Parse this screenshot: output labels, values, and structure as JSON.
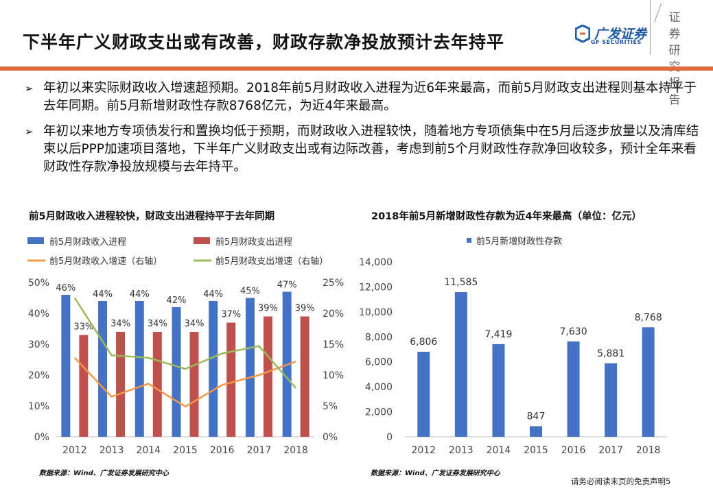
{
  "header": {
    "title": "下半年广义财政支出或有改善，财政存款净投放预计去年持平",
    "logo_text": "广发证券",
    "logo_en": "GF SECURITIES",
    "report_tag": "证券研究报告"
  },
  "bullets": [
    {
      "marker": "➢",
      "text": "年初以来实际财政收入增速超预期。2018年前5月财政收入进程为近6年来最高，而前5月财政支出进程则基本持平于去年同期。前5月新增财政性存款8768亿元，为近4年来最高。"
    },
    {
      "marker": "➢",
      "text": "年初以来地方专项债发行和置换均低于预期，而财政收入进程较快，随着地方专项债集中在5月后逐步放量以及清库结束以后PPP加速项目落地，下半年广义财政支出或有边际改善，考虑到前5个月财政性存款净回收较多，预计全年来看财政性存款净投放规模与去年持平。"
    }
  ],
  "colors": {
    "accent_rule": "#e06a3c",
    "brand_blue": "#1f5aa8",
    "bar_blue": "#4472c4",
    "bar_red": "#c0504d",
    "line_orange": "#f79646",
    "line_green": "#9bbb59"
  },
  "chart_data": [
    {
      "type": "bar",
      "title": "前5月财政收入进程较快，财政支出进程持平于去年同期",
      "categories": [
        "2012",
        "2013",
        "2014",
        "2015",
        "2016",
        "2017",
        "2018"
      ],
      "series": [
        {
          "name": "前5月财政收入进程",
          "kind": "bar",
          "axis": "left",
          "color": "#4472c4",
          "values": [
            46,
            44,
            44,
            42,
            44,
            45,
            47
          ],
          "labels": [
            "46%",
            "44%",
            "44%",
            "42%",
            "44%",
            "45%",
            "47%"
          ]
        },
        {
          "name": "前5月财政支出进程",
          "kind": "bar",
          "axis": "left",
          "color": "#c0504d",
          "values": [
            33,
            34,
            34,
            34,
            37,
            39,
            39
          ],
          "labels": [
            "33%",
            "34%",
            "34%",
            "34%",
            "37%",
            "39%",
            "39%"
          ]
        },
        {
          "name": "前5月财政收入增速（右轴）",
          "kind": "line",
          "axis": "right",
          "color": "#f79646",
          "values": [
            12.8,
            6.5,
            8.6,
            4.9,
            8.4,
            10.0,
            12.2
          ]
        },
        {
          "name": "前5月财政支出增速（右轴）",
          "kind": "line",
          "axis": "right",
          "color": "#9bbb59",
          "values": [
            22.5,
            13.2,
            12.8,
            11.0,
            13.5,
            14.7,
            7.9
          ]
        }
      ],
      "y_left": {
        "min": 0,
        "max": 50,
        "ticks": [
          "0%",
          "10%",
          "20%",
          "30%",
          "40%",
          "50%"
        ]
      },
      "y_right": {
        "min": 0,
        "max": 25,
        "ticks": [
          "0%",
          "5%",
          "10%",
          "15%",
          "20%",
          "25%"
        ]
      },
      "legend": "top",
      "grid": false,
      "source": "数据来源：Wind、广发证券发展研究中心"
    },
    {
      "type": "bar",
      "title": "2018年前5月新增财政性存款为近4年来最高（单位：亿元）",
      "categories": [
        "2012",
        "2013",
        "2014",
        "2015",
        "2016",
        "2017",
        "2018"
      ],
      "series": [
        {
          "name": "前5月新增财政性存款",
          "color": "#4472c4",
          "values": [
            6806,
            11585,
            7419,
            847,
            7630,
            5881,
            8768
          ],
          "labels": [
            "6,806",
            "11,585",
            "7,419",
            "847",
            "7,630",
            "5,881",
            "8,768"
          ]
        }
      ],
      "y_left": {
        "min": 0,
        "max": 14000,
        "ticks": [
          "0",
          "2,000",
          "4,000",
          "6,000",
          "8,000",
          "10,000",
          "12,000",
          "14,000"
        ]
      },
      "legend": "top",
      "grid": false,
      "source": "数据来源：Wind、广发证券发展研究中心"
    }
  ],
  "footer": {
    "disclaimer": "请务必阅读末页的免责声明",
    "page_number": "5"
  }
}
